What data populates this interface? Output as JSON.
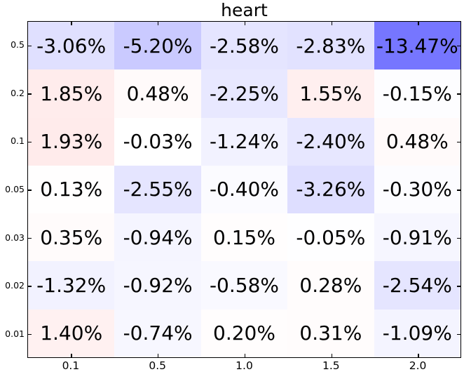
{
  "chart_data": {
    "type": "heatmap",
    "title": "heart",
    "x_tick_labels": [
      "0.1",
      "0.5",
      "1.0",
      "1.5",
      "2.0"
    ],
    "y_tick_labels": [
      "0.5",
      "0.2",
      "0.1",
      "0.05",
      "0.03",
      "0.02",
      "0.01"
    ],
    "rows": [
      {
        "y": "0.5",
        "values": [
          -3.06,
          -5.2,
          -2.58,
          -2.83,
          -13.47
        ]
      },
      {
        "y": "0.2",
        "values": [
          1.85,
          0.48,
          -2.25,
          1.55,
          -0.15
        ]
      },
      {
        "y": "0.1",
        "values": [
          1.93,
          -0.03,
          -1.24,
          -2.4,
          0.48
        ]
      },
      {
        "y": "0.05",
        "values": [
          0.13,
          -2.55,
          -0.4,
          -3.26,
          -0.3
        ]
      },
      {
        "y": "0.03",
        "values": [
          0.35,
          -0.94,
          0.15,
          -0.05,
          -0.91
        ]
      },
      {
        "y": "0.02",
        "values": [
          -1.32,
          -0.92,
          -0.58,
          0.28,
          -2.54
        ]
      },
      {
        "y": "0.01",
        "values": [
          1.4,
          -0.74,
          0.2,
          0.31,
          -1.09
        ]
      }
    ],
    "cell_text_format": "value.toFixed(2) + %",
    "colormap": {
      "style": "bwr-diverging",
      "negative_end": "#0000ff",
      "zero": "#ffffff",
      "positive_end": "#ff0000",
      "abs_scale": 25
    },
    "frame_color": "#000000",
    "tick_color": "#000000",
    "text_color": "#000000",
    "background_color": "#ffffff",
    "legend": "none",
    "grid": "off"
  }
}
